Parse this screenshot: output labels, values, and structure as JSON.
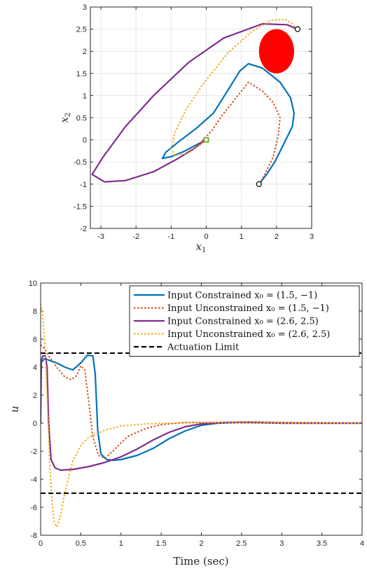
{
  "chart_data": [
    {
      "type": "line",
      "title": "",
      "xlabel": "x_1",
      "ylabel": "x_2",
      "xlim": [
        -3.3,
        3.0
      ],
      "ylim": [
        -2,
        3
      ],
      "xticks": [
        "-3",
        "-2",
        "-1",
        "0",
        "1",
        "2",
        "3"
      ],
      "yticks": [
        "-2",
        "-1.5",
        "-1",
        "-0.5",
        "0",
        "0.5",
        "1",
        "1.5",
        "2",
        "2.5",
        "3"
      ],
      "grid": true,
      "obstacle": {
        "center": [
          2.0,
          2.0
        ],
        "rx": 0.5,
        "ry": 0.5,
        "color": "#ff0000"
      },
      "start_points": [
        [
          1.5,
          -1.0
        ],
        [
          2.6,
          2.5
        ]
      ],
      "target_point": [
        0,
        0
      ],
      "series": [
        {
          "color": "#0072BD",
          "style": "solid",
          "points": [
            [
              1.5,
              -1.0
            ],
            [
              1.7,
              -0.8
            ],
            [
              1.95,
              -0.5
            ],
            [
              2.2,
              -0.1
            ],
            [
              2.45,
              0.3
            ],
            [
              2.5,
              0.6
            ],
            [
              2.4,
              0.95
            ],
            [
              2.1,
              1.3
            ],
            [
              1.6,
              1.62
            ],
            [
              1.2,
              1.72
            ],
            [
              0.95,
              1.55
            ],
            [
              0.6,
              1.1
            ],
            [
              0.2,
              0.6
            ],
            [
              -0.3,
              0.25
            ],
            [
              -0.8,
              -0.05
            ],
            [
              -1.15,
              -0.28
            ],
            [
              -1.25,
              -0.42
            ],
            [
              -1.0,
              -0.38
            ],
            [
              -0.6,
              -0.25
            ],
            [
              -0.3,
              -0.12
            ],
            [
              -0.1,
              -0.04
            ],
            [
              0,
              0
            ]
          ]
        },
        {
          "color": "#D95319",
          "style": "dotted",
          "points": [
            [
              1.5,
              -1.0
            ],
            [
              1.65,
              -0.8
            ],
            [
              1.9,
              -0.4
            ],
            [
              2.05,
              0.1
            ],
            [
              2.1,
              0.5
            ],
            [
              1.9,
              0.85
            ],
            [
              1.6,
              1.1
            ],
            [
              1.2,
              1.3
            ],
            [
              0.8,
              0.9
            ],
            [
              0.45,
              0.55
            ],
            [
              0.15,
              0.2
            ],
            [
              -0.15,
              -0.05
            ],
            [
              -0.3,
              -0.15
            ],
            [
              -0.15,
              -0.08
            ],
            [
              0,
              0
            ]
          ]
        },
        {
          "color": "#7E2F8E",
          "style": "solid",
          "points": [
            [
              2.6,
              2.5
            ],
            [
              2.3,
              2.6
            ],
            [
              1.6,
              2.62
            ],
            [
              0.5,
              2.3
            ],
            [
              -0.5,
              1.75
            ],
            [
              -1.5,
              1.0
            ],
            [
              -2.3,
              0.3
            ],
            [
              -2.95,
              -0.4
            ],
            [
              -3.25,
              -0.78
            ],
            [
              -2.9,
              -0.95
            ],
            [
              -2.3,
              -0.92
            ],
            [
              -1.5,
              -0.72
            ],
            [
              -0.8,
              -0.42
            ],
            [
              -0.35,
              -0.2
            ],
            [
              -0.1,
              -0.05
            ],
            [
              0,
              0
            ]
          ]
        },
        {
          "color": "#EDB120",
          "style": "dotted",
          "points": [
            [
              2.6,
              2.5
            ],
            [
              2.45,
              2.62
            ],
            [
              2.25,
              2.72
            ],
            [
              1.85,
              2.7
            ],
            [
              1.3,
              2.45
            ],
            [
              0.6,
              1.95
            ],
            [
              -0.1,
              1.25
            ],
            [
              -0.6,
              0.65
            ],
            [
              -0.9,
              0.15
            ],
            [
              -1.0,
              -0.2
            ],
            [
              -0.9,
              -0.35
            ],
            [
              -0.5,
              -0.3
            ],
            [
              -0.15,
              -0.1
            ],
            [
              0,
              0
            ]
          ]
        }
      ]
    },
    {
      "type": "line",
      "title": "",
      "xlabel": "Time (sec)",
      "ylabel": "u",
      "xlim": [
        0,
        4
      ],
      "ylim": [
        -8,
        10
      ],
      "xticks": [
        "0",
        "0.5",
        "1",
        "1.5",
        "2",
        "2.5",
        "3",
        "3.5",
        "4"
      ],
      "yticks": [
        "-8",
        "-6",
        "-4",
        "-2",
        "0",
        "2",
        "4",
        "6",
        "8",
        "10"
      ],
      "grid": false,
      "legend": "top-right",
      "series": [
        {
          "name": "Input Constrained x₀ = (1.5, −1)",
          "color": "#0072BD",
          "style": "solid",
          "points": [
            [
              0,
              4.3
            ],
            [
              0.05,
              4.6
            ],
            [
              0.1,
              4.5
            ],
            [
              0.2,
              4.3
            ],
            [
              0.3,
              4.0
            ],
            [
              0.4,
              3.8
            ],
            [
              0.5,
              4.3
            ],
            [
              0.58,
              4.85
            ],
            [
              0.65,
              4.8
            ],
            [
              0.68,
              3.5
            ],
            [
              0.71,
              -0.5
            ],
            [
              0.75,
              -2.2
            ],
            [
              0.82,
              -2.6
            ],
            [
              0.9,
              -2.65
            ],
            [
              1.0,
              -2.6
            ],
            [
              1.2,
              -2.3
            ],
            [
              1.4,
              -1.8
            ],
            [
              1.6,
              -1.1
            ],
            [
              1.8,
              -0.55
            ],
            [
              2.0,
              -0.15
            ],
            [
              2.2,
              0.0
            ],
            [
              2.5,
              0.05
            ],
            [
              3.0,
              0.0
            ],
            [
              4.0,
              0.0
            ]
          ]
        },
        {
          "name": "Input Unconstrained x₀ = (1.5, −1)",
          "color": "#D95319",
          "style": "dotted",
          "points": [
            [
              0,
              5.6
            ],
            [
              0.05,
              5.3
            ],
            [
              0.1,
              4.8
            ],
            [
              0.2,
              4.0
            ],
            [
              0.3,
              3.3
            ],
            [
              0.38,
              3.1
            ],
            [
              0.45,
              3.4
            ],
            [
              0.5,
              4.1
            ],
            [
              0.55,
              3.8
            ],
            [
              0.6,
              1.5
            ],
            [
              0.65,
              -1.0
            ],
            [
              0.72,
              -2.3
            ],
            [
              0.8,
              -2.5
            ],
            [
              0.9,
              -2.0
            ],
            [
              1.0,
              -1.4
            ],
            [
              1.1,
              -0.9
            ],
            [
              1.3,
              -0.4
            ],
            [
              1.5,
              -0.1
            ],
            [
              1.8,
              0.05
            ],
            [
              2.2,
              0.05
            ],
            [
              2.6,
              0.1
            ],
            [
              3.0,
              0.05
            ],
            [
              4.0,
              0.0
            ]
          ]
        },
        {
          "name": "Input Constrained x₀ = (2.6, 2.5)",
          "color": "#7E2F8E",
          "style": "solid",
          "points": [
            [
              0,
              0.0
            ],
            [
              0.01,
              4.5
            ],
            [
              0.03,
              4.8
            ],
            [
              0.06,
              4.8
            ],
            [
              0.08,
              4.0
            ],
            [
              0.1,
              0.0
            ],
            [
              0.13,
              -2.6
            ],
            [
              0.18,
              -3.2
            ],
            [
              0.25,
              -3.35
            ],
            [
              0.4,
              -3.3
            ],
            [
              0.6,
              -3.1
            ],
            [
              0.8,
              -2.8
            ],
            [
              1.0,
              -2.4
            ],
            [
              1.2,
              -1.85
            ],
            [
              1.4,
              -1.2
            ],
            [
              1.6,
              -0.65
            ],
            [
              1.8,
              -0.25
            ],
            [
              2.0,
              -0.05
            ],
            [
              2.3,
              0.05
            ],
            [
              2.6,
              0.05
            ],
            [
              3.0,
              0.0
            ],
            [
              4.0,
              0.0
            ]
          ]
        },
        {
          "name": "Input Unconstrained x₀ = (2.6, 2.5)",
          "color": "#EDB120",
          "style": "dotted",
          "points": [
            [
              0,
              8.5
            ],
            [
              0.02,
              8.0
            ],
            [
              0.05,
              6.0
            ],
            [
              0.08,
              2.0
            ],
            [
              0.11,
              -2.5
            ],
            [
              0.14,
              -5.5
            ],
            [
              0.17,
              -7.1
            ],
            [
              0.2,
              -7.4
            ],
            [
              0.24,
              -6.8
            ],
            [
              0.3,
              -5.0
            ],
            [
              0.4,
              -2.7
            ],
            [
              0.5,
              -1.6
            ],
            [
              0.6,
              -1.0
            ],
            [
              0.8,
              -0.5
            ],
            [
              1.0,
              -0.2
            ],
            [
              1.3,
              -0.05
            ],
            [
              1.6,
              0.0
            ],
            [
              2.0,
              0.05
            ],
            [
              3.0,
              0.0
            ],
            [
              4.0,
              0.0
            ]
          ]
        },
        {
          "name": "Actuation Limit",
          "color": "#000000",
          "style": "dashed",
          "points": [
            [
              0,
              5
            ],
            [
              4,
              5
            ]
          ]
        },
        {
          "name": "",
          "color": "#000000",
          "style": "dashed",
          "points": [
            [
              0,
              -5
            ],
            [
              4,
              -5
            ]
          ]
        }
      ]
    }
  ]
}
